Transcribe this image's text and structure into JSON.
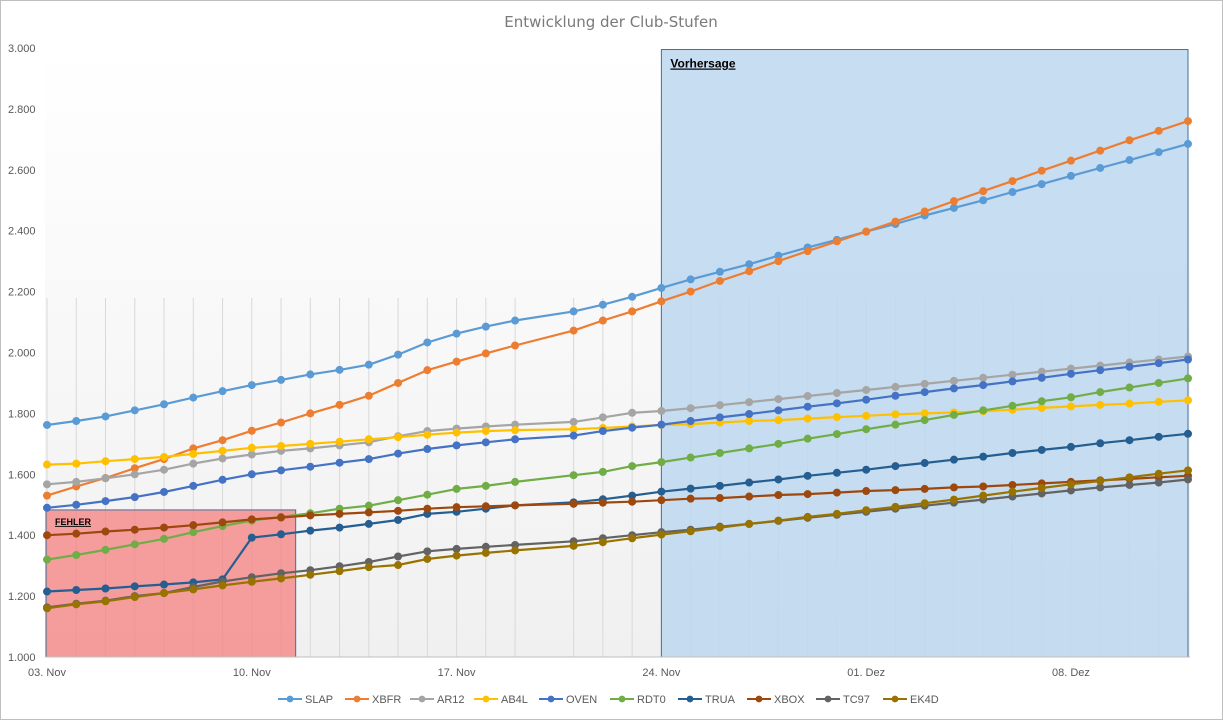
{
  "chart_data": {
    "type": "line",
    "title": "Entwicklung der Club-Stufen",
    "xlabel": "",
    "ylabel": "",
    "ylim": [
      1000,
      3000
    ],
    "y_ticks": [
      "1.000",
      "1.200",
      "1.400",
      "1.600",
      "1.800",
      "2.000",
      "2.200",
      "2.400",
      "2.600",
      "2.800",
      "3.000"
    ],
    "y_tick_values": [
      1000,
      1200,
      1400,
      1600,
      1800,
      2000,
      2200,
      2400,
      2600,
      2800,
      3000
    ],
    "x_ticks": [
      {
        "label": "03. Nov",
        "day": 0
      },
      {
        "label": "10. Nov",
        "day": 7
      },
      {
        "label": "17. Nov",
        "day": 14
      },
      {
        "label": "24. Nov",
        "day": 21
      },
      {
        "label": "01. Dez",
        "day": 28
      },
      {
        "label": "08. Dez",
        "day": 35
      }
    ],
    "x_days": [
      0,
      1,
      2,
      3,
      4,
      5,
      6,
      7,
      8,
      9,
      10,
      11,
      12,
      13,
      14,
      15,
      16,
      18,
      19,
      20,
      21,
      22,
      23,
      24,
      25,
      26,
      27,
      28,
      29,
      30,
      31,
      32,
      33,
      34,
      35,
      36,
      37,
      38,
      39
    ],
    "x_dates": [
      "03. Nov",
      "04. Nov",
      "05. Nov",
      "06. Nov",
      "07. Nov",
      "08. Nov",
      "09. Nov",
      "10. Nov",
      "11. Nov",
      "12. Nov",
      "13. Nov",
      "14. Nov",
      "15. Nov",
      "16. Nov",
      "17. Nov",
      "18. Nov",
      "19. Nov",
      "21. Nov",
      "22. Nov",
      "23. Nov",
      "24. Nov",
      "25. Nov",
      "26. Nov",
      "27. Nov",
      "28. Nov",
      "29. Nov",
      "30. Nov",
      "01. Dez",
      "02. Dez",
      "03. Dez",
      "04. Dez",
      "05. Dez",
      "06. Dez",
      "07. Dez",
      "08. Dez",
      "09. Dez",
      "10. Dez",
      "11. Dez",
      "12. Dez"
    ],
    "x_day_range": [
      0,
      39
    ],
    "grid": "vertical",
    "legend": "bottom",
    "series": [
      {
        "name": "SLAP",
        "color": "#5B9BD5",
        "values": [
          1762,
          1775,
          1790,
          1810,
          1830,
          1852,
          1873,
          1893,
          1910,
          1928,
          1943,
          1960,
          1993,
          2033,
          2062,
          2085,
          2105,
          2135,
          2157,
          2183,
          2212,
          2240,
          2265,
          2290,
          2318,
          2345,
          2370,
          2397,
          2422,
          2450,
          2475,
          2500,
          2527,
          2553,
          2580,
          2606,
          2632,
          2658,
          2685
        ]
      },
      {
        "name": "XBFR",
        "color": "#ED7D31",
        "values": [
          1530,
          1560,
          1588,
          1620,
          1650,
          1685,
          1712,
          1743,
          1770,
          1800,
          1828,
          1858,
          1900,
          1942,
          1970,
          1997,
          2023,
          2072,
          2105,
          2135,
          2168,
          2200,
          2235,
          2267,
          2300,
          2333,
          2365,
          2397,
          2430,
          2463,
          2497,
          2530,
          2563,
          2597,
          2630,
          2663,
          2697,
          2728,
          2760
        ]
      },
      {
        "name": "AR12",
        "color": "#A5A5A5",
        "values": [
          1567,
          1575,
          1587,
          1600,
          1615,
          1635,
          1652,
          1665,
          1677,
          1685,
          1695,
          1705,
          1725,
          1742,
          1750,
          1757,
          1763,
          1772,
          1787,
          1802,
          1808,
          1817,
          1827,
          1837,
          1847,
          1857,
          1867,
          1877,
          1887,
          1897,
          1907,
          1917,
          1927,
          1937,
          1947,
          1957,
          1967,
          1977,
          1987
        ]
      },
      {
        "name": "AB4L",
        "color": "#FFC000",
        "values": [
          1632,
          1635,
          1643,
          1650,
          1657,
          1667,
          1677,
          1687,
          1693,
          1700,
          1707,
          1715,
          1722,
          1730,
          1737,
          1742,
          1745,
          1748,
          1752,
          1757,
          1762,
          1765,
          1770,
          1775,
          1778,
          1783,
          1788,
          1792,
          1797,
          1800,
          1803,
          1807,
          1812,
          1818,
          1823,
          1828,
          1832,
          1838,
          1843
        ]
      },
      {
        "name": "OVEN",
        "color": "#4472C4",
        "values": [
          1490,
          1500,
          1512,
          1525,
          1542,
          1562,
          1582,
          1600,
          1613,
          1625,
          1638,
          1650,
          1668,
          1683,
          1695,
          1705,
          1715,
          1727,
          1742,
          1753,
          1763,
          1775,
          1787,
          1798,
          1810,
          1822,
          1833,
          1845,
          1858,
          1870,
          1882,
          1893,
          1905,
          1917,
          1930,
          1942,
          1953,
          1965,
          1977
        ]
      },
      {
        "name": "RDT0",
        "color": "#70AD47",
        "values": [
          1320,
          1335,
          1352,
          1370,
          1388,
          1410,
          1430,
          1448,
          1460,
          1472,
          1487,
          1497,
          1515,
          1533,
          1552,
          1562,
          1575,
          1597,
          1608,
          1627,
          1640,
          1655,
          1670,
          1685,
          1700,
          1717,
          1732,
          1748,
          1763,
          1778,
          1795,
          1810,
          1825,
          1840,
          1853,
          1870,
          1885,
          1900,
          1915
        ]
      },
      {
        "name": "TRUA",
        "color": "#255E91",
        "values": [
          1215,
          1220,
          1225,
          1232,
          1238,
          1245,
          1255,
          1392,
          1403,
          1415,
          1425,
          1437,
          1450,
          1470,
          1477,
          1487,
          1498,
          1508,
          1518,
          1530,
          1543,
          1553,
          1562,
          1573,
          1583,
          1595,
          1605,
          1615,
          1627,
          1637,
          1648,
          1658,
          1670,
          1680,
          1690,
          1702,
          1712,
          1723,
          1733
        ]
      },
      {
        "name": "XBOX",
        "color": "#9E480E",
        "values": [
          1400,
          1405,
          1412,
          1418,
          1425,
          1433,
          1442,
          1452,
          1458,
          1465,
          1470,
          1475,
          1480,
          1487,
          1492,
          1495,
          1498,
          1503,
          1507,
          1510,
          1515,
          1520,
          1522,
          1527,
          1532,
          1535,
          1540,
          1545,
          1548,
          1552,
          1557,
          1560,
          1565,
          1570,
          1575,
          1580,
          1585,
          1590,
          1595
        ]
      },
      {
        "name": "TC97",
        "color": "#636363",
        "values": [
          1163,
          1175,
          1185,
          1200,
          1210,
          1230,
          1248,
          1262,
          1275,
          1285,
          1298,
          1312,
          1330,
          1347,
          1355,
          1362,
          1368,
          1380,
          1390,
          1400,
          1410,
          1418,
          1428,
          1437,
          1447,
          1457,
          1467,
          1477,
          1487,
          1497,
          1507,
          1517,
          1527,
          1537,
          1547,
          1557,
          1565,
          1573,
          1583
        ]
      },
      {
        "name": "EK4D",
        "color": "#997300",
        "values": [
          1160,
          1173,
          1183,
          1197,
          1210,
          1222,
          1235,
          1247,
          1258,
          1270,
          1282,
          1295,
          1302,
          1322,
          1333,
          1342,
          1350,
          1365,
          1377,
          1390,
          1402,
          1413,
          1425,
          1437,
          1448,
          1460,
          1470,
          1482,
          1493,
          1505,
          1517,
          1530,
          1543,
          1555,
          1567,
          1578,
          1590,
          1602,
          1613
        ]
      }
    ],
    "annotations": [
      {
        "label": "FEHLER",
        "color": "#F4807F",
        "day_range": [
          0,
          8.5
        ],
        "y_range": [
          1000,
          1483
        ]
      },
      {
        "label": "Vorhersage",
        "color": "#BDD7EE",
        "day_range": [
          21,
          39
        ],
        "y_range": [
          1000,
          2995
        ]
      }
    ]
  }
}
